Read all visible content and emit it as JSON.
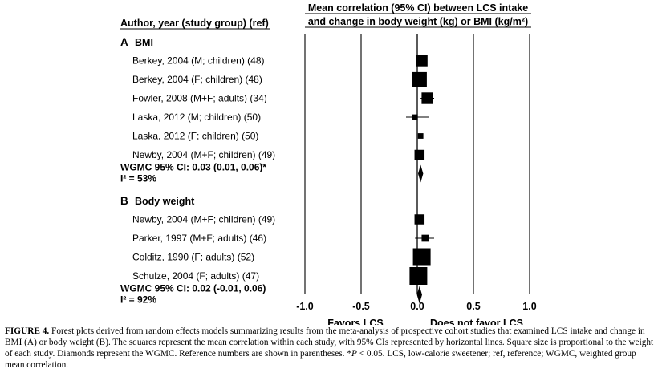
{
  "chart_data": {
    "type": "forest",
    "left_header": "Author, year (study group) (ref)",
    "right_header": [
      "Mean correlation (95% CI) between LCS intake",
      "and change in body weight  (kg) or BMI (kg/m²)"
    ],
    "xlim": [
      -1.0,
      1.0
    ],
    "xticks": [
      "-1.0",
      "-0.5",
      "0.0",
      "0.5",
      "1.0"
    ],
    "xtick_values": [
      -1.0,
      -0.5,
      0.0,
      0.5,
      1.0
    ],
    "xlabel_left": "Favors LCS",
    "xlabel_right": "Does not favor LCS",
    "sections": [
      {
        "letter": "A",
        "title": "BMI",
        "studies": [
          {
            "label": "Berkey, 2004 (M; children) (48)",
            "mean": 0.04,
            "lower": 0.0,
            "upper": 0.08,
            "weight": 3
          },
          {
            "label": "Berkey, 2004 (F; children) (48)",
            "mean": 0.02,
            "lower": -0.02,
            "upper": 0.06,
            "weight": 4
          },
          {
            "label": "Fowler, 2008 (M+F; adults) (34)",
            "mean": 0.09,
            "lower": 0.03,
            "upper": 0.15,
            "weight": 3
          },
          {
            "label": "Laska, 2012 (M; children) (50)",
            "mean": -0.02,
            "lower": -0.1,
            "upper": 0.1,
            "weight": 1
          },
          {
            "label": "Laska, 2012 (F; children) (50)",
            "mean": 0.03,
            "lower": -0.05,
            "upper": 0.15,
            "weight": 1
          },
          {
            "label": "Newby, 2004 (M+F; children) (49)",
            "mean": 0.02,
            "lower": -0.01,
            "upper": 0.05,
            "weight": 2.5
          }
        ],
        "summary_label": "WGMC 95% CI: 0.03 (0.01, 0.06)*",
        "heterogeneity": "I² = 53%",
        "summary": {
          "mean": 0.03,
          "lower": 0.01,
          "upper": 0.06
        }
      },
      {
        "letter": "B",
        "title": "Body weight",
        "studies": [
          {
            "label": "Newby, 2004 (M+F; children) (49)",
            "mean": 0.02,
            "lower": -0.01,
            "upper": 0.05,
            "weight": 2.5
          },
          {
            "label": "Parker, 1997 (M+F; adults) (46)",
            "mean": 0.07,
            "lower": -0.02,
            "upper": 0.15,
            "weight": 1.5
          },
          {
            "label": "Colditz, 1990 (F; adults) (52)",
            "mean": 0.04,
            "lower": 0.01,
            "upper": 0.07,
            "weight": 5
          },
          {
            "label": "Schulze, 2004 (F; adults) (47)",
            "mean": 0.01,
            "lower": -0.02,
            "upper": 0.04,
            "weight": 5
          }
        ],
        "summary_label": "WGMC 95% CI: 0.02 (-0.01, 0.06)",
        "heterogeneity": "I² = 92%",
        "summary": {
          "mean": 0.02,
          "lower": -0.01,
          "upper": 0.06
        }
      }
    ]
  },
  "caption": {
    "label": "FIGURE 4.",
    "text_before_p": " Forest plots derived from random effects models summarizing results from the meta-analysis of prospective cohort studies that examined LCS intake and change in BMI (A) or body weight (B). The squares represent the mean correlation within each study, with 95% CIs represented by horizontal lines. Square size is proportional to the weight of each study. Diamonds represent the WGMC. Reference numbers are shown in parentheses. *",
    "p_symbol": "P",
    "text_after_p": " < 0.05. LCS, low-calorie sweetener; ref, reference; WGMC, weighted group mean correlation."
  }
}
